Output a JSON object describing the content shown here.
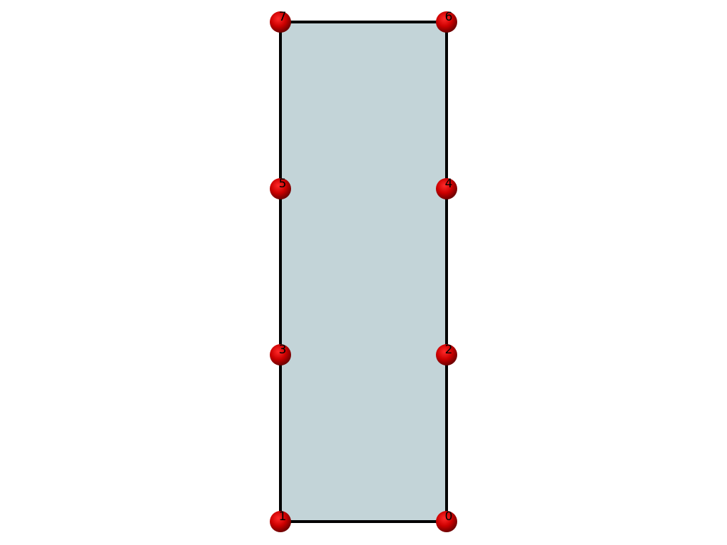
{
  "diagram": {
    "fill_color": "#c3d4d8",
    "edge_color": "#000000",
    "node_color": "#cc0000",
    "nodes": [
      {
        "id": "0",
        "label": "0",
        "col": 1,
        "row": 0
      },
      {
        "id": "1",
        "label": "1",
        "col": 0,
        "row": 0
      },
      {
        "id": "2",
        "label": "2",
        "col": 1,
        "row": 1
      },
      {
        "id": "3",
        "label": "3",
        "col": 0,
        "row": 1
      },
      {
        "id": "4",
        "label": "4",
        "col": 1,
        "row": 2
      },
      {
        "id": "5",
        "label": "5",
        "col": 0,
        "row": 2
      },
      {
        "id": "6",
        "label": "6",
        "col": 1,
        "row": 3
      },
      {
        "id": "7",
        "label": "7",
        "col": 0,
        "row": 3
      }
    ],
    "outline": [
      "1",
      "0",
      "2",
      "4",
      "6",
      "7",
      "5",
      "3"
    ]
  }
}
